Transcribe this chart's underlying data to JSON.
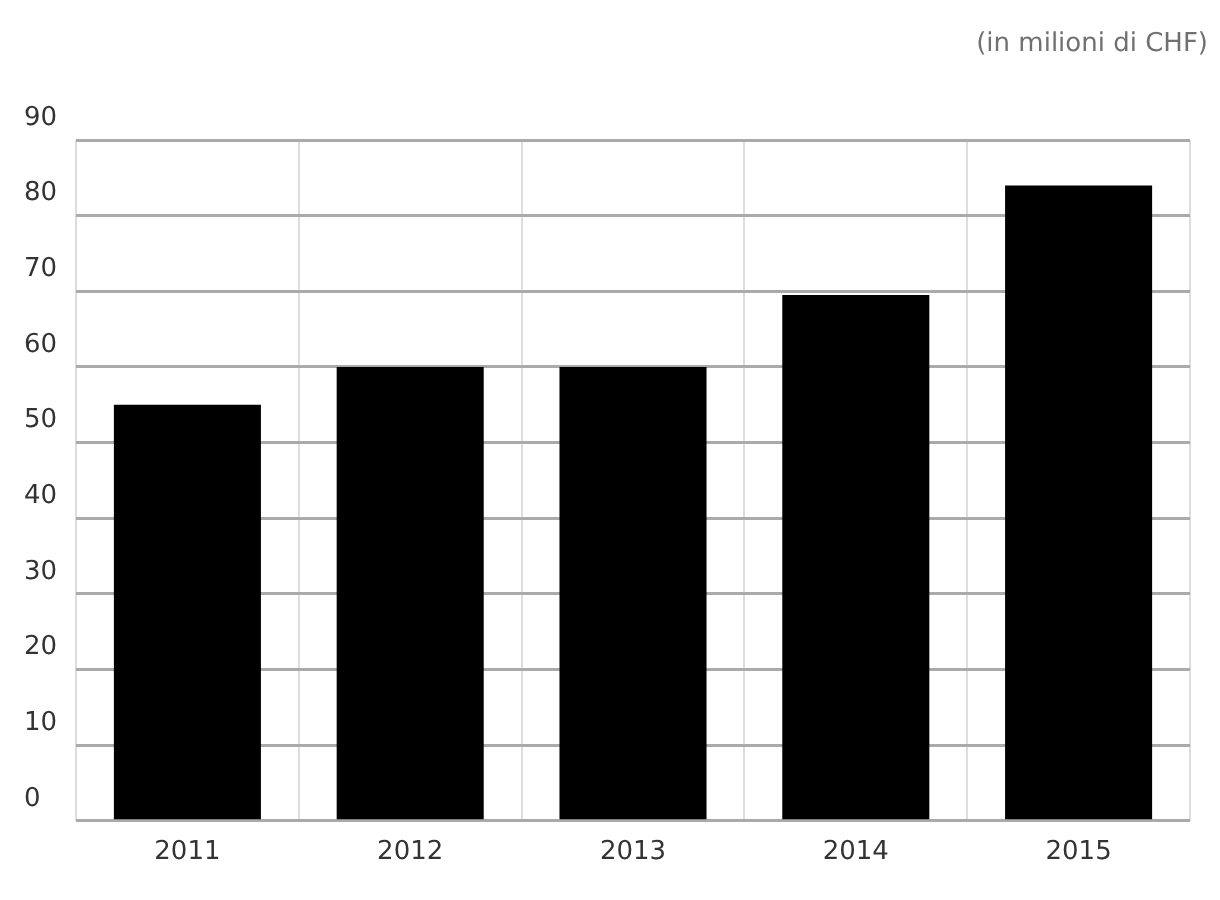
{
  "chart_data": {
    "type": "bar",
    "annotations": [
      "(in milioni di CHF)"
    ],
    "categories": [
      "2011",
      "2012",
      "2013",
      "2014",
      "2015"
    ],
    "values": [
      55,
      60,
      60,
      69.5,
      84
    ],
    "color": "#000000",
    "ylim": [
      0,
      90
    ],
    "yticks": [
      0,
      10,
      20,
      30,
      40,
      50,
      60,
      70,
      80,
      90
    ],
    "grid": true
  }
}
